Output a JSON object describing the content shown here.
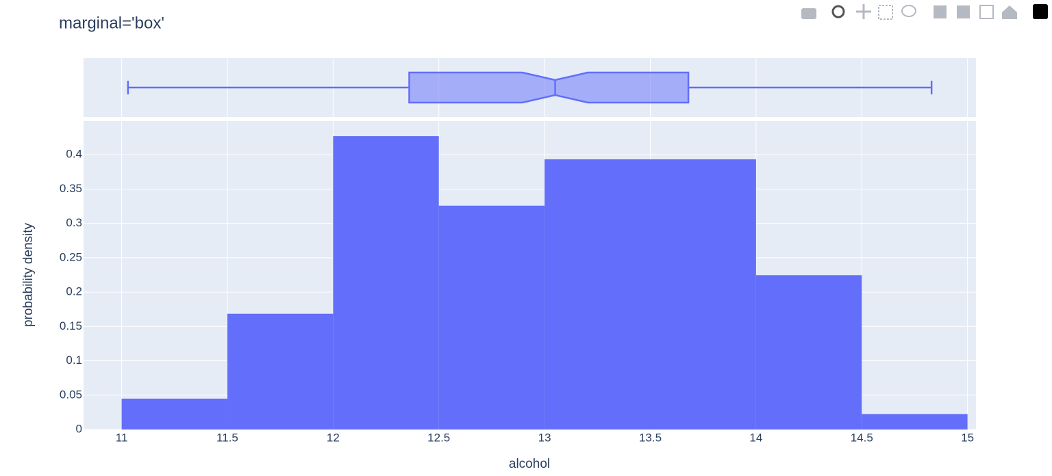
{
  "chart_data": {
    "type": "histogram",
    "title": "marginal='box'",
    "x_label": "alcohol",
    "y_label": "probability density",
    "bins": [
      11,
      11.5,
      12,
      12.5,
      13,
      13.5,
      14,
      14.5,
      15
    ],
    "values": [
      0.0449,
      0.1685,
      0.427,
      0.3258,
      0.3933,
      0.3933,
      0.2247,
      0.0225
    ],
    "color": "#636efa",
    "box": {
      "min": 11.03,
      "q1": 12.36,
      "notch_low": 12.895,
      "median": 13.05,
      "notch_high": 13.205,
      "q3": 13.68,
      "max": 14.83
    },
    "xlim": [
      10.82,
      15.04
    ],
    "xticks": [
      11,
      11.5,
      12,
      12.5,
      13,
      13.5,
      14,
      14.5,
      15
    ],
    "ylim": [
      0,
      0.449
    ],
    "yticks": [
      0,
      0.05,
      0.1,
      0.15,
      0.2,
      0.25,
      0.3,
      0.35,
      0.4
    ],
    "grid": true
  }
}
